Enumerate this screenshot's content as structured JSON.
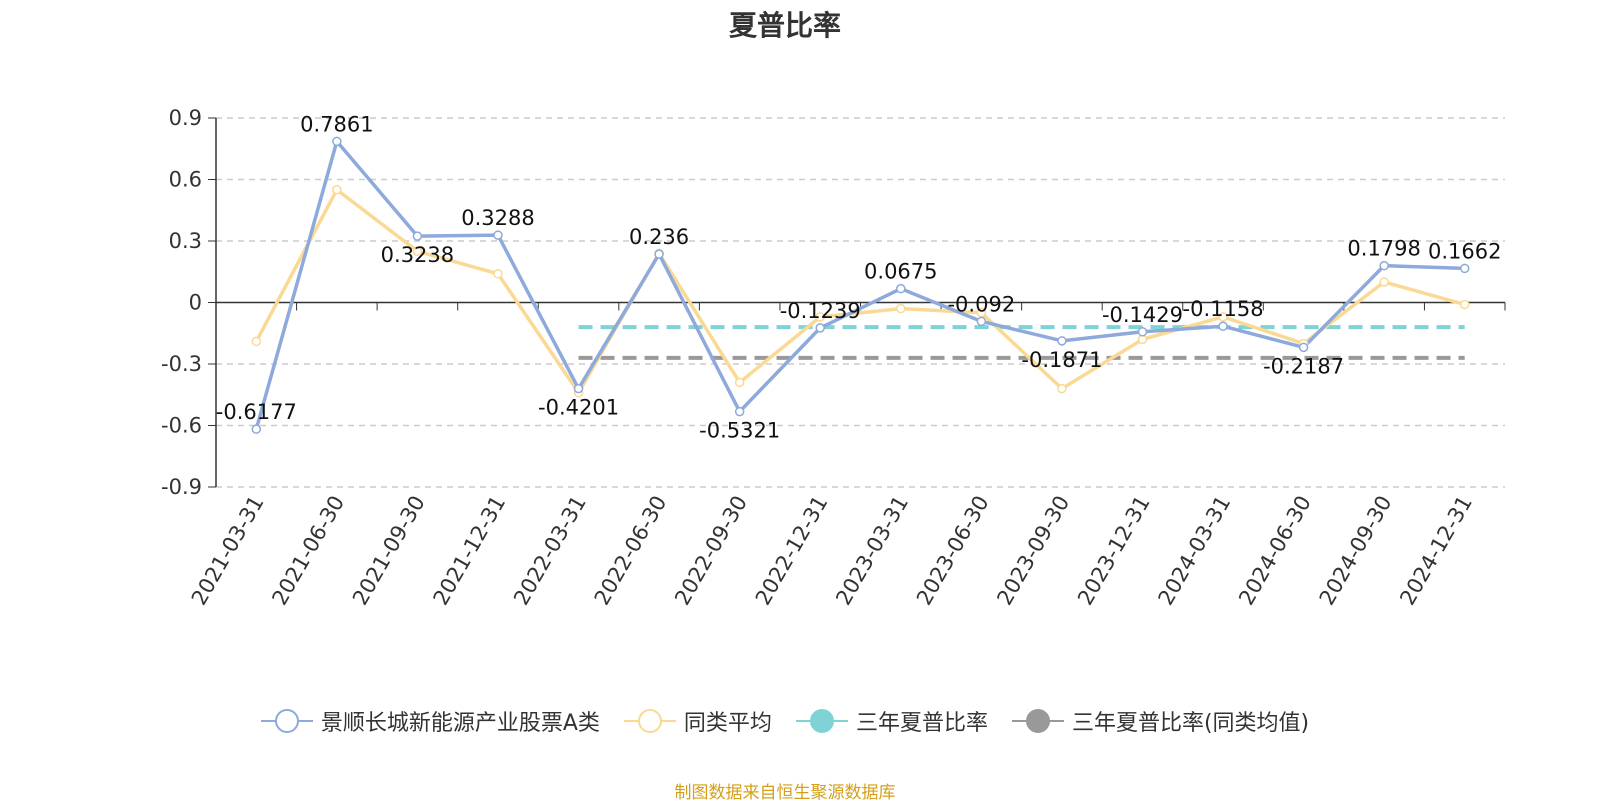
{
  "title": "夏普比率",
  "source": "制图数据来自恒生聚源数据库",
  "colors": {
    "fund": "#8ea9db",
    "peer": "#fad994",
    "three_year": "#7fd3d6",
    "three_year_peer": "#999999",
    "axis": "#333333",
    "grid": "#cccccc",
    "source": "#d4a017"
  },
  "legend": [
    {
      "label": "景顺长城新能源产业股票A类",
      "icon": "hollow-circle-line",
      "color": "#8ea9db"
    },
    {
      "label": "同类平均",
      "icon": "hollow-circle-line",
      "color": "#fad994"
    },
    {
      "label": "三年夏普比率",
      "icon": "filled-circle-line",
      "color": "#7fd3d6"
    },
    {
      "label": "三年夏普比率(同类均值)",
      "icon": "filled-circle-line",
      "color": "#999999"
    }
  ],
  "chart_data": {
    "type": "line",
    "title": "夏普比率",
    "xlabel": "",
    "ylabel": "",
    "ylim": [
      -0.9,
      0.9
    ],
    "yticks": [
      "0.9",
      "0.6",
      "0.3",
      "0",
      "-0.3",
      "-0.6",
      "-0.9"
    ],
    "grid": true,
    "legend_position": "bottom",
    "categories": [
      "2021-03-31",
      "2021-06-30",
      "2021-09-30",
      "2021-12-31",
      "2022-03-31",
      "2022-06-30",
      "2022-09-30",
      "2022-12-31",
      "2023-03-31",
      "2023-06-30",
      "2023-09-30",
      "2023-12-31",
      "2024-03-31",
      "2024-06-30",
      "2024-09-30",
      "2024-12-31"
    ],
    "series": [
      {
        "name": "景顺长城新能源产业股票A类",
        "values": [
          -0.6177,
          0.7861,
          0.3238,
          0.3288,
          -0.4201,
          0.236,
          -0.5321,
          -0.1239,
          0.0675,
          -0.092,
          -0.1871,
          -0.1429,
          -0.1158,
          -0.2187,
          0.1798,
          0.1662
        ],
        "labels": [
          "-0.6177",
          "0.7861",
          "0.3238",
          "0.3288",
          "-0.4201",
          "0.236",
          "-0.5321",
          "-0.1239",
          "0.0675",
          "-0.092",
          "-0.1871",
          "-0.1429",
          "-0.1158",
          "-0.2187",
          "0.1798",
          "0.1662"
        ]
      },
      {
        "name": "同类平均",
        "values": [
          -0.19,
          0.55,
          0.25,
          0.14,
          -0.44,
          0.24,
          -0.39,
          -0.07,
          -0.03,
          -0.05,
          -0.42,
          -0.18,
          -0.07,
          -0.2,
          0.1,
          -0.01
        ]
      },
      {
        "name": "三年夏普比率",
        "from": "2022-03-31",
        "to": "2024-12-31",
        "value": -0.12
      },
      {
        "name": "三年夏普比率(同类均值)",
        "from": "2022-03-31",
        "to": "2024-12-31",
        "value": -0.27
      }
    ]
  }
}
